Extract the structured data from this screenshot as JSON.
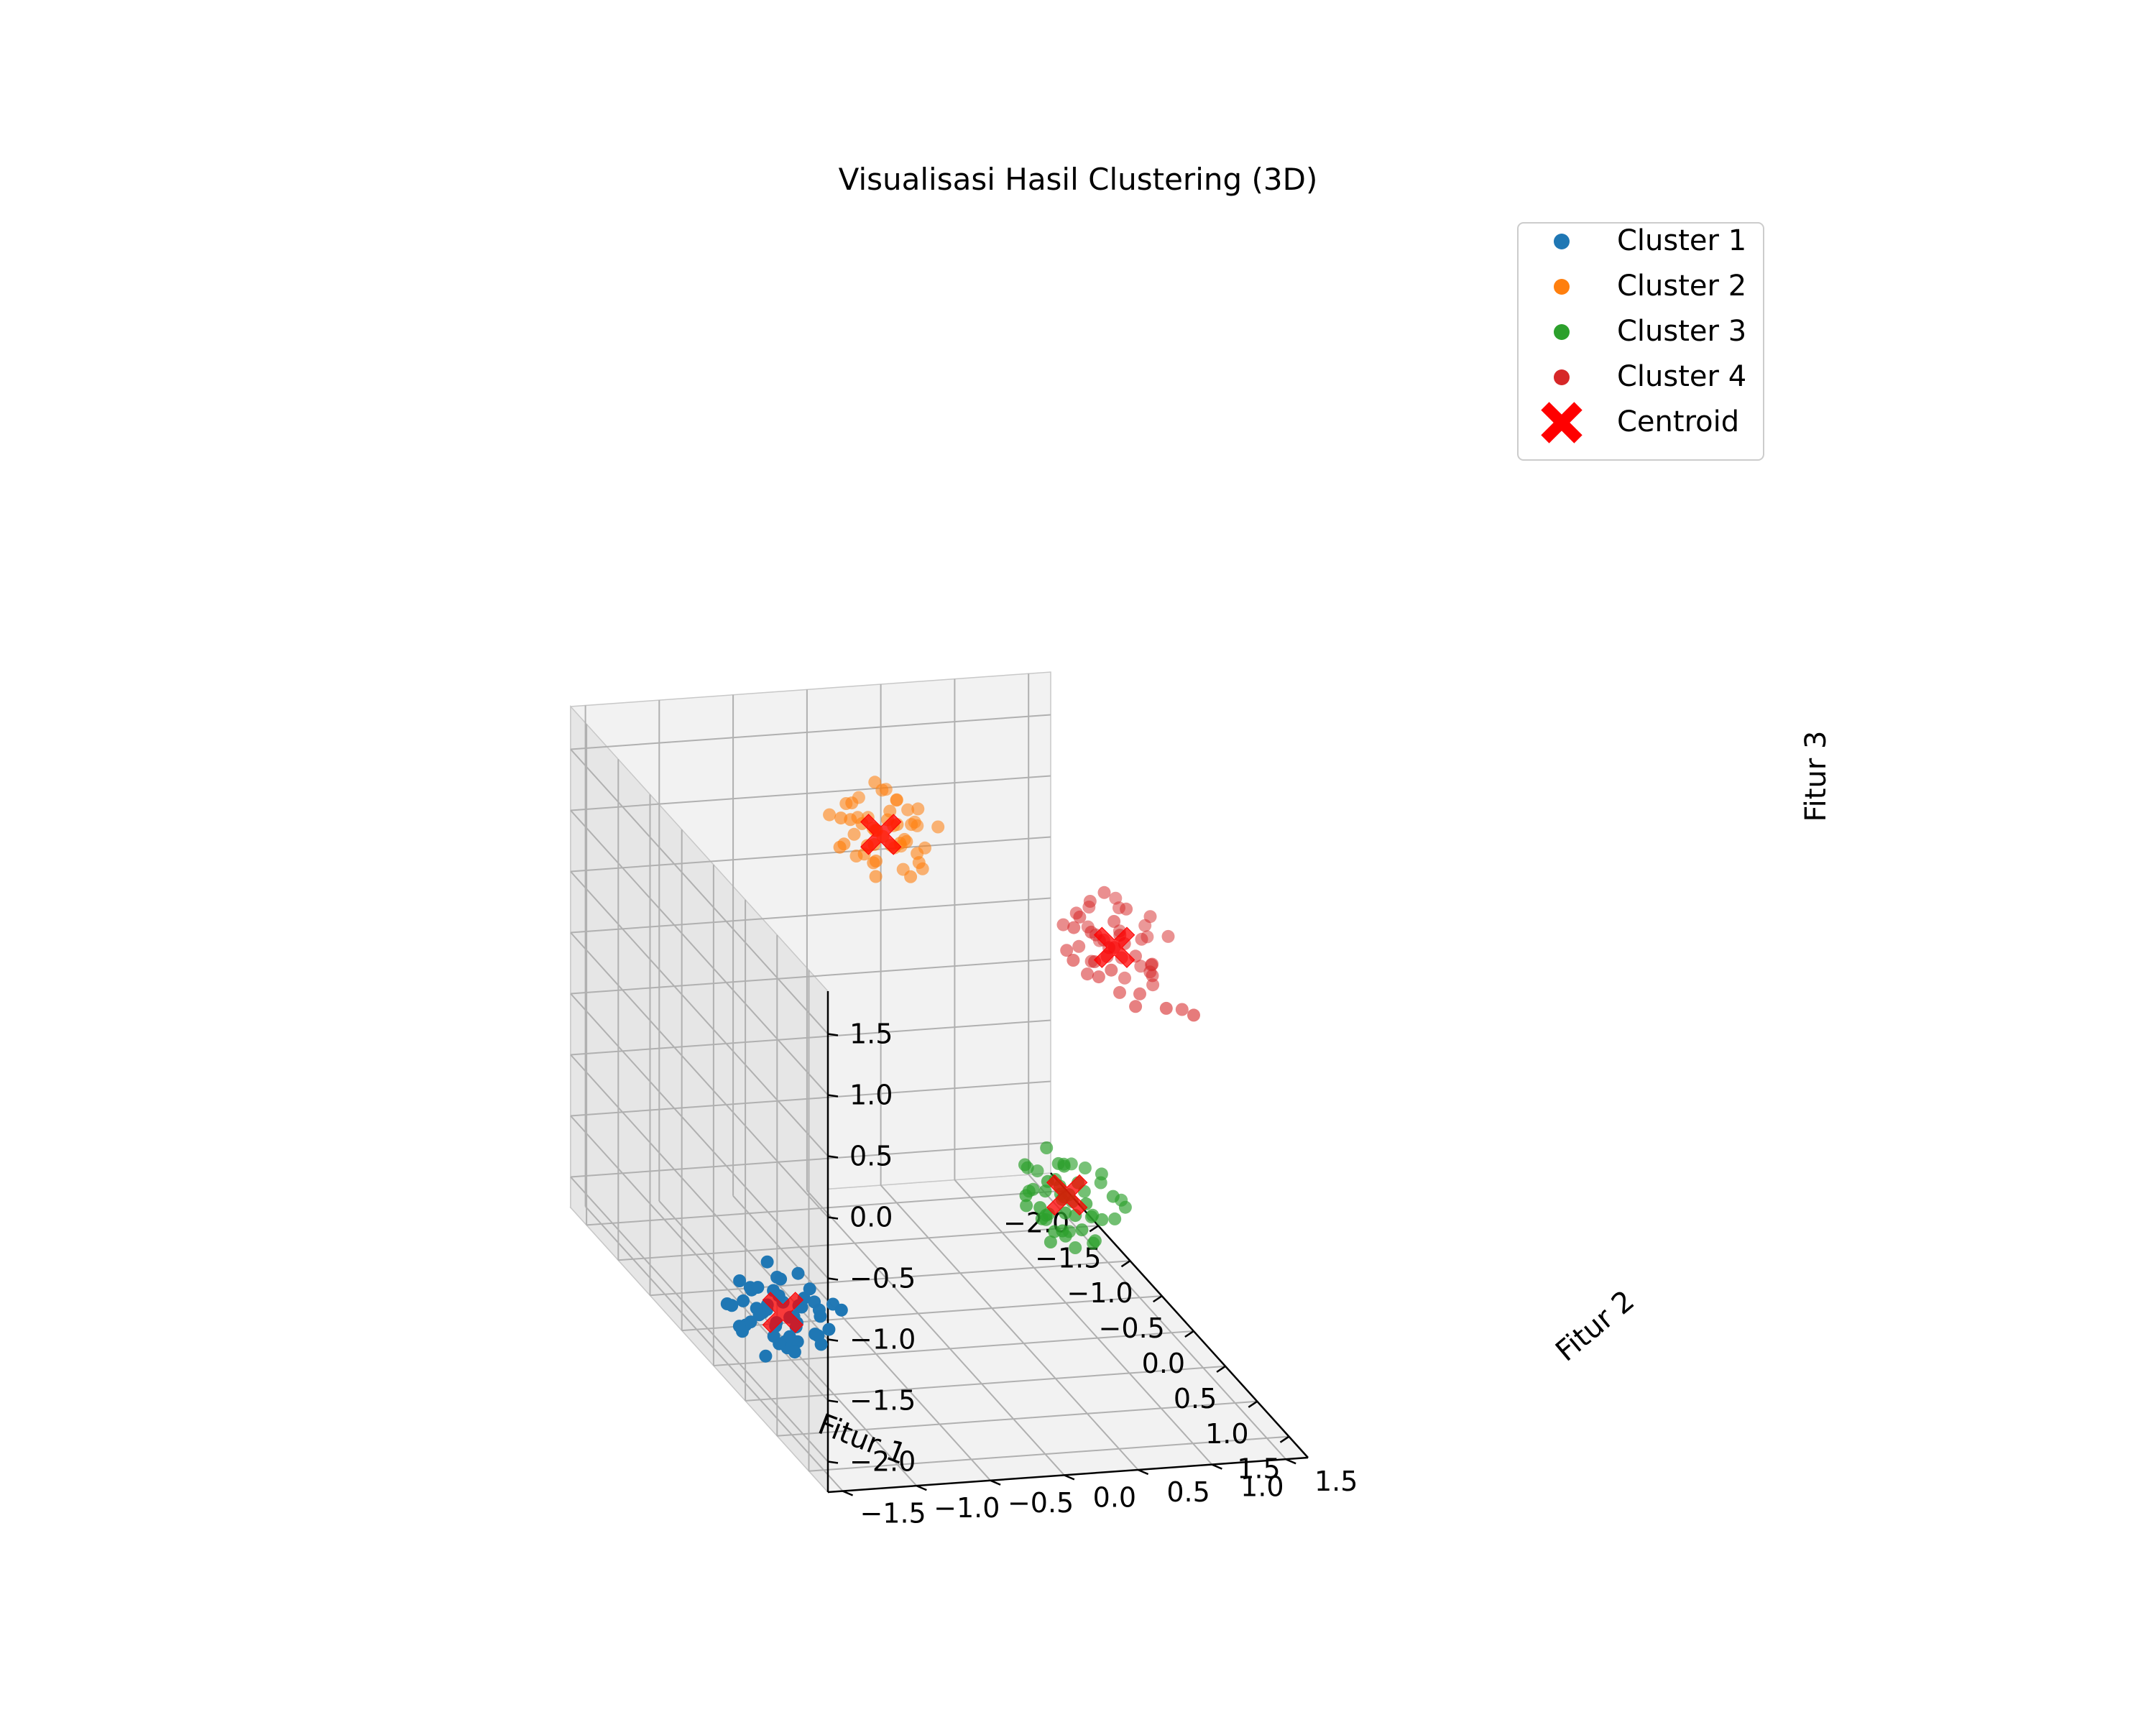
{
  "chart_data": {
    "type": "scatter",
    "projection": "3d",
    "title": "Visualisasi Hasil Clustering (3D)",
    "xlabel": "Fitur 1",
    "ylabel": "Fitur 2",
    "zlabel": "Fitur 3",
    "xlim": [
      -2.25,
      1.8
    ],
    "ylim": [
      -1.6,
      1.65
    ],
    "zlim": [
      -2.25,
      1.85
    ],
    "xticks": [
      "−2.0",
      "−1.5",
      "−1.0",
      "−0.5",
      "0.0",
      "0.5",
      "1.0",
      "1.5"
    ],
    "xtick_values": [
      -2.0,
      -1.5,
      -1.0,
      -0.5,
      0.0,
      0.5,
      1.0,
      1.5
    ],
    "yticks": [
      "−1.5",
      "−1.0",
      "−0.5",
      "0.0",
      "0.5",
      "1.0",
      "1.5"
    ],
    "ytick_values": [
      -1.5,
      -1.0,
      -0.5,
      0.0,
      0.5,
      1.0,
      1.5
    ],
    "zticks": [
      "−2.0",
      "−1.5",
      "−1.0",
      "−0.5",
      "0.0",
      "0.5",
      "1.0",
      "1.5"
    ],
    "ztick_values": [
      -2.0,
      -1.5,
      -1.0,
      -0.5,
      0.0,
      0.5,
      1.0,
      1.5
    ],
    "grid": true,
    "legend_position": "top-right",
    "series": [
      {
        "name": "Cluster 1",
        "color": "#1f77b4",
        "center": [
          0.58,
          -1.38,
          -1.5
        ],
        "spread": [
          0.25,
          0.28,
          0.22
        ],
        "points": [
          [
            0.62,
            -1.35,
            -1.52
          ],
          [
            0.42,
            -1.58,
            -1.48
          ],
          [
            0.75,
            -1.2,
            -1.45
          ],
          [
            0.55,
            -1.62,
            -1.6
          ],
          [
            0.3,
            -1.3,
            -1.38
          ],
          [
            0.8,
            -1.5,
            -1.62
          ],
          [
            0.5,
            -1.1,
            -1.55
          ],
          [
            0.68,
            -1.45,
            -1.3
          ],
          [
            0.35,
            -1.5,
            -1.7
          ],
          [
            0.9,
            -1.3,
            -1.5
          ],
          [
            0.45,
            -1.25,
            -1.62
          ],
          [
            0.72,
            -1.6,
            -1.42
          ],
          [
            0.6,
            -1.15,
            -1.7
          ],
          [
            0.25,
            -1.45,
            -1.5
          ],
          [
            0.85,
            -1.1,
            -1.35
          ],
          [
            0.52,
            -1.7,
            -1.45
          ],
          [
            0.65,
            -1.38,
            -1.75
          ],
          [
            0.4,
            -1.2,
            -1.3
          ],
          [
            0.78,
            -1.42,
            -1.58
          ],
          [
            0.58,
            -1.55,
            -1.28
          ],
          [
            0.33,
            -1.65,
            -1.55
          ],
          [
            0.95,
            -1.45,
            -1.4
          ],
          [
            0.48,
            -1.32,
            -1.8
          ],
          [
            0.7,
            -1.25,
            -1.25
          ],
          [
            0.56,
            -1.48,
            -1.48
          ],
          [
            0.38,
            -1.4,
            -1.2
          ],
          [
            0.82,
            -1.6,
            -1.7
          ],
          [
            0.6,
            -1.05,
            -1.45
          ],
          [
            0.46,
            -1.55,
            -1.35
          ],
          [
            0.74,
            -1.35,
            -1.65
          ],
          [
            0.64,
            -1.7,
            -1.55
          ],
          [
            0.28,
            -1.25,
            -1.6
          ],
          [
            0.88,
            -1.25,
            -1.6
          ],
          [
            0.54,
            -1.22,
            -1.42
          ],
          [
            0.66,
            -1.52,
            -1.38
          ],
          [
            0.43,
            -1.45,
            -1.58
          ],
          [
            0.77,
            -1.15,
            -1.55
          ],
          [
            0.59,
            -1.4,
            -1.22
          ],
          [
            0.5,
            -1.62,
            -1.68
          ],
          [
            0.71,
            -1.48,
            -1.5
          ],
          [
            0.36,
            -1.35,
            -1.45
          ],
          [
            0.83,
            -1.38,
            -1.3
          ],
          [
            0.57,
            -1.28,
            -1.6
          ],
          [
            0.63,
            -1.58,
            -1.42
          ],
          [
            0.47,
            -1.12,
            -1.5
          ],
          [
            0.79,
            -1.52,
            -1.48
          ],
          [
            0.53,
            -1.42,
            -1.72
          ],
          [
            0.69,
            -1.3,
            -1.4
          ],
          [
            0.41,
            -1.6,
            -1.32
          ],
          [
            0.86,
            -1.42,
            -1.66
          ]
        ]
      },
      {
        "name": "Cluster 2",
        "color": "#ff7f0e",
        "center": [
          -1.55,
          0.2,
          1.05
        ],
        "spread": [
          0.25,
          0.28,
          0.22
        ],
        "points": [
          [
            -1.52,
            0.2,
            1.05
          ],
          [
            -1.75,
            0.05,
            1.2
          ],
          [
            -1.3,
            0.35,
            0.95
          ],
          [
            -1.6,
            0.45,
            1.1
          ],
          [
            -1.45,
            -0.05,
            1.25
          ],
          [
            -1.85,
            0.3,
            0.9
          ],
          [
            -1.4,
            0.1,
            0.8
          ],
          [
            -1.65,
            0.25,
            1.35
          ],
          [
            -1.25,
            0.2,
            1.15
          ],
          [
            -1.7,
            0.4,
            0.85
          ],
          [
            -1.5,
            -0.1,
            1.0
          ],
          [
            -1.35,
            0.5,
            1.2
          ],
          [
            -1.8,
            0.15,
            1.05
          ],
          [
            -1.55,
            0.35,
            0.75
          ],
          [
            -1.42,
            0.25,
            1.4
          ],
          [
            -1.62,
            -0.02,
            0.95
          ],
          [
            -1.28,
            0.05,
            1.0
          ],
          [
            -1.9,
            0.2,
            1.15
          ],
          [
            -1.48,
            0.42,
            1.28
          ],
          [
            -1.58,
            0.1,
            0.88
          ],
          [
            -1.38,
            0.3,
            1.08
          ],
          [
            -1.72,
            0.38,
            1.22
          ],
          [
            -1.33,
            0.15,
            1.3
          ],
          [
            -1.66,
            0.08,
            0.82
          ],
          [
            -1.54,
            0.28,
            1.12
          ],
          [
            -1.2,
            0.25,
            0.9
          ],
          [
            -1.78,
            -0.05,
            1.1
          ],
          [
            -1.44,
            0.45,
            0.98
          ],
          [
            -1.6,
            0.18,
            1.45
          ],
          [
            -1.5,
            0.05,
            1.18
          ],
          [
            -1.36,
            0.4,
            0.86
          ],
          [
            -1.82,
            0.35,
            1.25
          ],
          [
            -1.47,
            0.12,
            1.02
          ],
          [
            -1.63,
            0.48,
            1.05
          ],
          [
            -1.3,
            0.0,
            1.12
          ],
          [
            -1.57,
            0.3,
            0.92
          ],
          [
            -1.41,
            0.2,
            1.32
          ],
          [
            -1.69,
            0.22,
            1.0
          ],
          [
            -1.53,
            -0.08,
            1.22
          ],
          [
            -1.26,
            0.32,
            1.05
          ],
          [
            -1.74,
            0.1,
            0.95
          ],
          [
            -1.49,
            0.38,
            1.15
          ],
          [
            -1.59,
            0.02,
            1.3
          ],
          [
            -1.39,
            0.08,
            0.92
          ],
          [
            -1.64,
            0.42,
            1.18
          ],
          [
            -1.51,
            0.25,
            0.98
          ],
          [
            -1.87,
            0.25,
            1.0
          ],
          [
            -1.34,
            0.22,
            1.25
          ],
          [
            -1.56,
            0.15,
            1.1
          ],
          [
            -1.46,
            0.32,
            1.05
          ]
        ]
      },
      {
        "name": "Cluster 3",
        "color": "#2ca02c",
        "center": [
          0.1,
          0.75,
          -1.0
        ],
        "spread": [
          0.25,
          0.28,
          0.22
        ],
        "points": [
          [
            0.12,
            0.72,
            -1.0
          ],
          [
            -0.1,
            0.55,
            -0.85
          ],
          [
            0.3,
            0.9,
            -1.1
          ],
          [
            0.05,
            1.0,
            -0.95
          ],
          [
            0.25,
            0.6,
            -1.2
          ],
          [
            -0.2,
            0.8,
            -1.05
          ],
          [
            0.4,
            0.75,
            -0.9
          ],
          [
            0.0,
            0.65,
            -1.25
          ],
          [
            0.18,
            0.95,
            -0.8
          ],
          [
            -0.05,
            0.85,
            -1.15
          ],
          [
            0.35,
            0.5,
            -1.0
          ],
          [
            0.08,
            0.7,
            -0.75
          ],
          [
            -0.15,
            0.6,
            -1.1
          ],
          [
            0.28,
            0.85,
            -1.3
          ],
          [
            0.15,
            0.45,
            -0.95
          ],
          [
            -0.08,
            0.95,
            -0.9
          ],
          [
            0.45,
            0.7,
            -1.08
          ],
          [
            0.02,
            0.8,
            -1.35
          ],
          [
            0.22,
            0.65,
            -0.85
          ],
          [
            -0.25,
            0.7,
            -1.0
          ],
          [
            0.32,
            1.05,
            -1.0
          ],
          [
            0.1,
            0.58,
            -1.18
          ],
          [
            -0.02,
            0.78,
            -0.82
          ],
          [
            0.2,
            0.88,
            -1.12
          ],
          [
            0.06,
            0.62,
            -0.98
          ],
          [
            0.38,
            0.82,
            -1.22
          ],
          [
            -0.12,
            0.72,
            -1.28
          ],
          [
            0.26,
            0.55,
            -0.78
          ],
          [
            0.14,
            1.1,
            -1.05
          ],
          [
            -0.18,
            0.9,
            -0.92
          ],
          [
            0.42,
            0.6,
            -0.95
          ],
          [
            0.04,
            0.5,
            -1.1
          ],
          [
            0.16,
            0.78,
            -1.4
          ],
          [
            -0.06,
            0.68,
            -0.7
          ],
          [
            0.3,
            0.72,
            -1.05
          ],
          [
            0.09,
            0.92,
            -1.2
          ],
          [
            0.21,
            0.52,
            -1.02
          ],
          [
            -0.14,
            0.82,
            -1.18
          ],
          [
            0.36,
            0.95,
            -0.88
          ],
          [
            0.0,
            0.75,
            -1.05
          ],
          [
            0.24,
            0.68,
            -1.25
          ],
          [
            0.11,
            0.82,
            -0.9
          ],
          [
            -0.04,
            0.58,
            -1.02
          ],
          [
            0.33,
            0.62,
            -1.15
          ],
          [
            0.17,
            0.7,
            -0.72
          ],
          [
            -0.22,
            0.62,
            -0.95
          ],
          [
            0.27,
            1.0,
            -1.12
          ],
          [
            0.07,
            0.88,
            -1.0
          ],
          [
            0.19,
            0.6,
            -1.32
          ],
          [
            0.13,
            0.75,
            -0.98
          ]
        ]
      },
      {
        "name": "Cluster 4",
        "color": "#d62728",
        "center": [
          -0.55,
          1.35,
          0.6
        ],
        "spread": [
          0.25,
          0.28,
          0.22
        ],
        "points": [
          [
            -0.55,
            1.35,
            0.6
          ],
          [
            -0.8,
            1.2,
            0.75
          ],
          [
            -0.3,
            1.5,
            0.5
          ],
          [
            -0.65,
            1.6,
            0.7
          ],
          [
            -0.45,
            1.15,
            0.8
          ],
          [
            -0.9,
            1.4,
            0.45
          ],
          [
            -0.35,
            1.3,
            0.35
          ],
          [
            -0.7,
            1.25,
            0.9
          ],
          [
            -0.2,
            1.45,
            0.65
          ],
          [
            -0.6,
            1.55,
            0.4
          ],
          [
            -0.5,
            1.05,
            0.55
          ],
          [
            -0.4,
            1.65,
            0.75
          ],
          [
            -0.85,
            1.3,
            0.6
          ],
          [
            -0.62,
            1.45,
            0.3
          ],
          [
            -0.48,
            1.4,
            0.95
          ],
          [
            -0.72,
            1.1,
            0.5
          ],
          [
            -0.25,
            1.2,
            0.6
          ],
          [
            -0.95,
            1.35,
            0.7
          ],
          [
            -0.52,
            1.58,
            0.85
          ],
          [
            -0.68,
            1.25,
            0.42
          ],
          [
            -0.38,
            1.42,
            0.62
          ],
          [
            -0.78,
            1.48,
            0.78
          ],
          [
            -0.3,
            1.28,
            0.85
          ],
          [
            -0.58,
            1.18,
            0.38
          ],
          [
            -0.46,
            1.38,
            0.68
          ],
          [
            -0.15,
            1.35,
            0.45
          ],
          [
            -0.82,
            1.12,
            0.65
          ],
          [
            -0.42,
            1.55,
            0.52
          ],
          [
            -0.64,
            1.32,
            1.0
          ],
          [
            -0.54,
            1.22,
            0.72
          ],
          [
            -0.34,
            1.52,
            0.4
          ],
          [
            -0.88,
            1.5,
            0.8
          ],
          [
            -0.5,
            1.28,
            0.56
          ],
          [
            -0.66,
            1.62,
            0.6
          ],
          [
            -0.28,
            1.1,
            0.66
          ],
          [
            -0.6,
            1.42,
            0.48
          ],
          [
            -0.44,
            1.3,
            0.88
          ],
          [
            -0.74,
            1.36,
            0.55
          ],
          [
            -0.56,
            1.08,
            0.78
          ],
          [
            -0.22,
            1.45,
            0.58
          ],
          [
            -0.76,
            1.2,
            0.5
          ],
          [
            -0.47,
            1.5,
            0.7
          ],
          [
            -0.63,
            1.15,
            0.82
          ],
          [
            0.35,
            1.5,
            0.55
          ],
          [
            0.15,
            1.4,
            0.5
          ],
          [
            0.05,
            1.55,
            0.42
          ],
          [
            -0.1,
            1.3,
            0.38
          ],
          [
            -0.52,
            1.3,
            0.62
          ],
          [
            -0.4,
            1.18,
            0.46
          ],
          [
            -0.7,
            1.45,
            0.64
          ]
        ]
      }
    ],
    "centroids": {
      "name": "Centroid",
      "color": "#ff0000",
      "points": [
        [
          0.58,
          -1.38,
          -1.5
        ],
        [
          -1.55,
          0.2,
          1.05
        ],
        [
          0.1,
          0.75,
          -1.0
        ],
        [
          -0.55,
          1.35,
          0.6
        ]
      ]
    }
  }
}
